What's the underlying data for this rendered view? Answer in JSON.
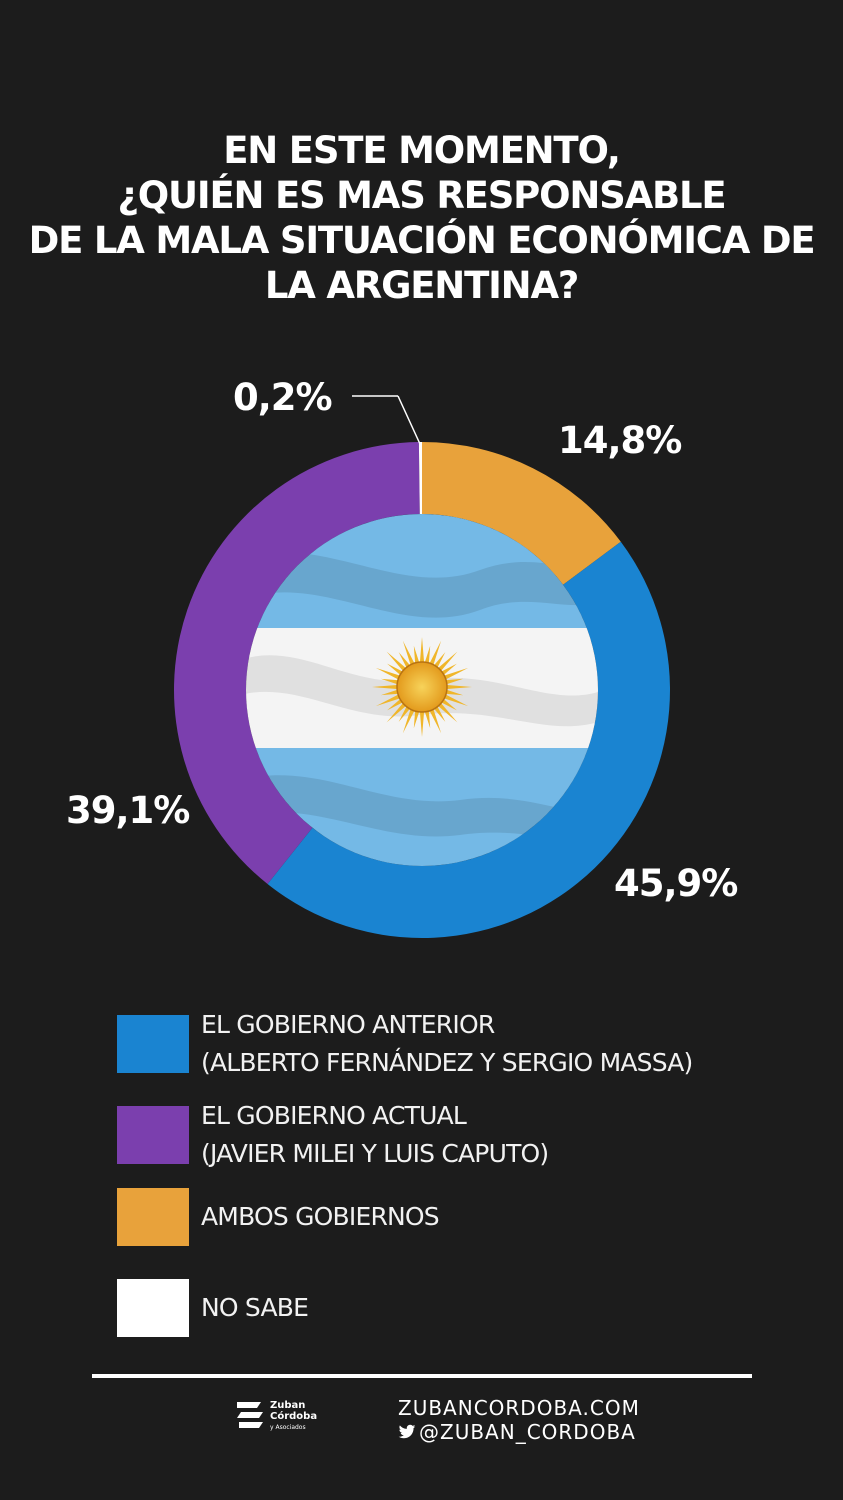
{
  "chart_data": {
    "type": "pie",
    "title_lines": [
      "EN ESTE MOMENTO,",
      "¿QUIÉN ES MAS RESPONSABLE",
      "DE LA MALA SITUACIÓN ECONÓMICA DE",
      "LA ARGENTINA?"
    ],
    "slices": [
      {
        "label": "AMBOS GOBIERNOS",
        "value": 14.8,
        "value_label": "14,8%",
        "color": "#e8a23b"
      },
      {
        "label": "EL GOBIERNO ANTERIOR (ALBERTO FERNÁNDEZ Y SERGIO MASSA)",
        "value": 45.9,
        "value_label": "45,9%",
        "color": "#1a84d1"
      },
      {
        "label": "EL GOBIERNO ACTUAL (JAVIER MILEI Y LUIS CAPUTO)",
        "value": 39.1,
        "value_label": "39,1%",
        "color": "#7b3fae"
      },
      {
        "label": "NO SABE",
        "value": 0.2,
        "value_label": "0,2%",
        "color": "#ffffff"
      }
    ],
    "donut": true,
    "legend_position": "bottom-left"
  },
  "legend": [
    {
      "lines": [
        "EL GOBIERNO ANTERIOR",
        "(ALBERTO FERNÁNDEZ Y SERGIO MASSA)"
      ],
      "color": "#1a84d1"
    },
    {
      "lines": [
        "EL GOBIERNO ACTUAL",
        "(JAVIER MILEI Y LUIS CAPUTO)"
      ],
      "color": "#7b3fae"
    },
    {
      "lines": [
        "AMBOS GOBIERNOS"
      ],
      "color": "#e8a23b"
    },
    {
      "lines": [
        "NO SABE"
      ],
      "color": "#ffffff"
    }
  ],
  "center_image": {
    "icon": "argentina-flag-icon",
    "colors": {
      "sky": "#74b9e6",
      "white": "#f4f4f4",
      "sun": "#f0b62a"
    }
  },
  "footer": {
    "logo_lines": [
      "Zuban",
      "Córdoba",
      "y Asociados"
    ],
    "website": "ZUBANCORDOBA.COM",
    "twitter": "@ZUBAN_CORDOBA"
  }
}
